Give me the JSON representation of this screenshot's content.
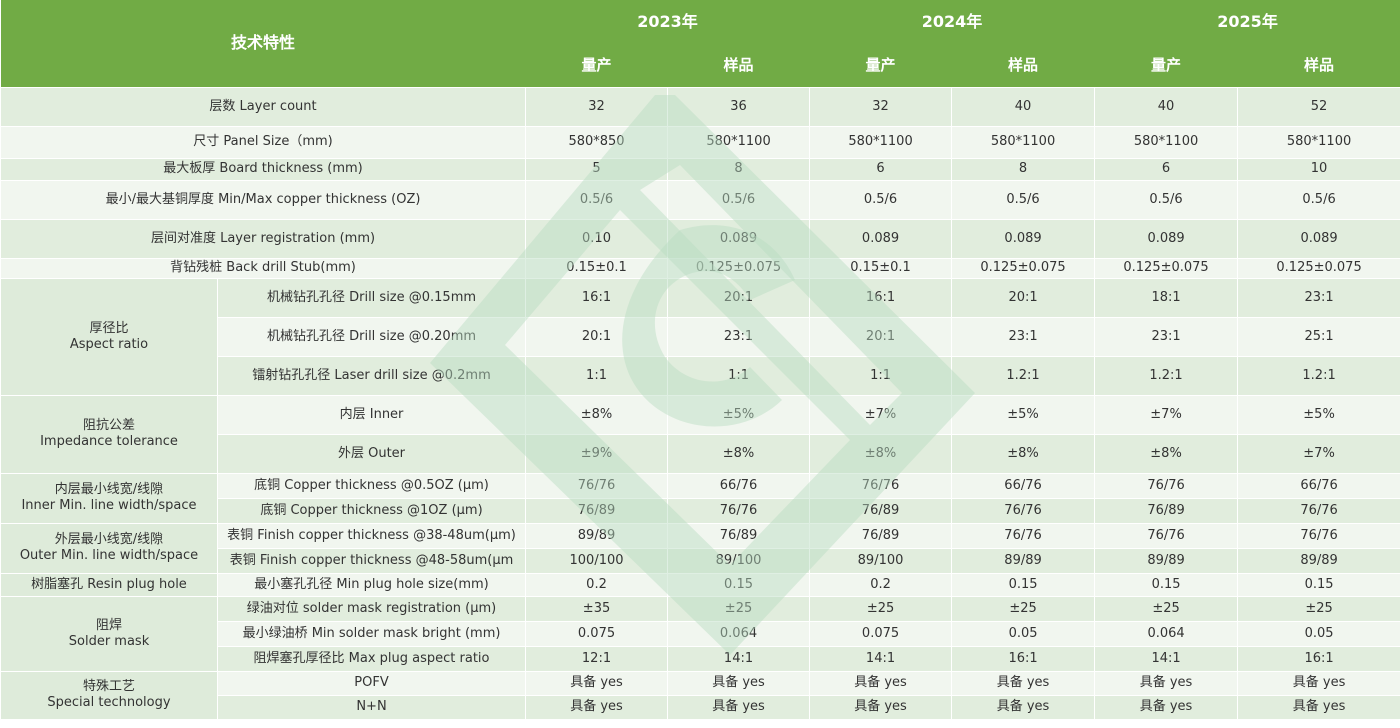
{
  "header": {
    "feature_label": "技术特性",
    "years": [
      "2023年",
      "2024年",
      "2025年"
    ],
    "mass": "量产",
    "sample": "样品"
  },
  "groups": {
    "aspect": {
      "cn": "厚径比",
      "en": "Aspect ratio"
    },
    "impedance": {
      "cn": "阻抗公差",
      "en": "Impedance  tolerance"
    },
    "inner": {
      "cn": "内层最小线宽/线隙",
      "en": "Inner Min. line width/space"
    },
    "outer": {
      "cn": "外层最小线宽/线隙",
      "en": "Outer Min. line width/space"
    },
    "solder": {
      "cn": "阻焊",
      "en": "Solder mask"
    },
    "special": {
      "cn": "特殊工艺",
      "en": "Special technology"
    }
  },
  "rows": [
    {
      "label": "层数 Layer count",
      "values": [
        "32",
        "36",
        "32",
        "40",
        "40",
        "52"
      ]
    },
    {
      "label": "尺寸 Panel Size（mm)",
      "values": [
        "580*850",
        "580*1100",
        "580*1100",
        "580*1100",
        "580*1100",
        "580*1100"
      ]
    },
    {
      "label": "最大板厚 Board thickness (mm)",
      "values": [
        "5",
        "8",
        "6",
        "8",
        "6",
        "10"
      ]
    },
    {
      "label": "最小/最大基铜厚度 Min/Max copper  thickness (OZ)",
      "values": [
        "0.5/6",
        "0.5/6",
        "0.5/6",
        "0.5/6",
        "0.5/6",
        "0.5/6"
      ]
    },
    {
      "label": "层间对准度 Layer  registration (mm)",
      "values": [
        "0.10",
        "0.089",
        "0.089",
        "0.089",
        "0.089",
        "0.089"
      ]
    },
    {
      "label": "背钻残桩 Back drill Stub(mm)",
      "values": [
        "0.15±0.1",
        "0.125±0.075",
        "0.15±0.1",
        "0.125±0.075",
        "0.125±0.075",
        "0.125±0.075"
      ]
    },
    {
      "label": "机械钻孔孔径  Drill size @0.15mm",
      "values": [
        "16:1",
        "20:1",
        "16:1",
        "20:1",
        "18:1",
        "23:1"
      ]
    },
    {
      "label": "机械钻孔孔径  Drill size @0.20mm",
      "values": [
        "20:1",
        "23:1",
        "20:1",
        "23:1",
        "23:1",
        "25:1"
      ]
    },
    {
      "label": "镭射钻孔孔径  Laser drill size  @0.2mm",
      "values": [
        "1:1",
        "1:1",
        "1:1",
        "1.2:1",
        "1.2:1",
        "1.2:1"
      ]
    },
    {
      "label": "内层 Inner",
      "values": [
        "±8%",
        "±5%",
        "±7%",
        "±5%",
        "±7%",
        "±5%"
      ]
    },
    {
      "label": "外层 Outer",
      "values": [
        "±9%",
        "±8%",
        "±8%",
        "±8%",
        "±8%",
        "±7%"
      ]
    },
    {
      "label": "底铜 Copper thickness @0.5OZ (μm)",
      "values": [
        "76/76",
        "66/76",
        "76/76",
        "66/76",
        "76/76",
        "66/76"
      ]
    },
    {
      "label": "底铜 Copper  thickness  @1OZ (μm)",
      "values": [
        "76/89",
        "76/76",
        "76/89",
        "76/76",
        "76/89",
        "76/76"
      ]
    },
    {
      "label": "表铜 Finish copper  thickness @38-48um(μm)",
      "values": [
        "89/89",
        "76/89",
        "76/89",
        "76/76",
        "76/76",
        "76/76"
      ]
    },
    {
      "label": "表铜 Finish copper  thickness  @48-58um(μm",
      "values": [
        "100/100",
        "89/100",
        "89/100",
        "89/89",
        "89/89",
        "89/89"
      ]
    },
    {
      "label": "最小塞孔孔径  Min plug hole size(mm)",
      "values": [
        "0.2",
        "0.15",
        "0.2",
        "0.15",
        "0.15",
        "0.15"
      ]
    },
    {
      "label": "绿油对位 solder mask registration  (μm)",
      "values": [
        "±35",
        "±25",
        "±25",
        "±25",
        "±25",
        "±25"
      ]
    },
    {
      "label": "最小绿油桥  Min solder mask bright  (mm)",
      "values": [
        "0.075",
        "0.064",
        "0.075",
        "0.05",
        "0.064",
        "0.05"
      ]
    },
    {
      "label": "阻焊塞孔厚径比  Max plug aspect ratio",
      "values": [
        "12:1",
        "14:1",
        "14:1",
        "16:1",
        "14:1",
        "16:1"
      ]
    },
    {
      "label": "POFV",
      "values": [
        "具备 yes",
        "具备 yes",
        "具备 yes",
        "具备 yes",
        "具备 yes",
        "具备 yes"
      ]
    },
    {
      "label": "N+N",
      "values": [
        "具备 yes",
        "具备 yes",
        "具备 yes",
        "具备 yes",
        "具备 yes",
        "具备 yes"
      ]
    }
  ],
  "resin_label": "树脂塞孔  Resin plug hole",
  "colors": {
    "header_green": "#71ab45",
    "row_light": "#d8e8d4",
    "logo_green": "#b9dcc0"
  }
}
